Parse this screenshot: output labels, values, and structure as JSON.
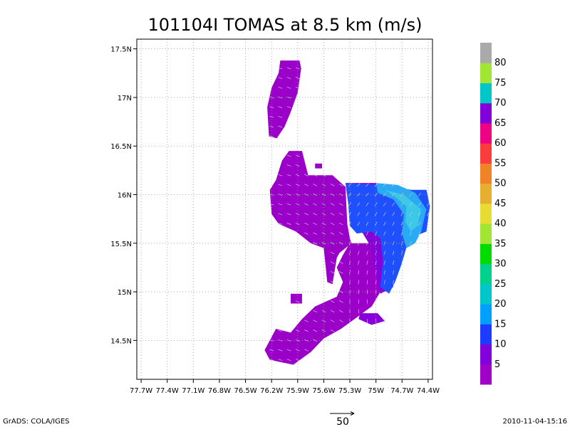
{
  "header": {
    "title": "101104I TOMAS at 8.5 km (m/s)"
  },
  "footer": {
    "left": "GrADS: COLA/IGES",
    "right": "2010-11-04-15:16",
    "scale_label": "50"
  },
  "chart_data": {
    "type": "heatmap",
    "title": "101104I TOMAS at 8.5 km (m/s)",
    "x_ticks": [
      "77.7W",
      "77.4W",
      "77.1W",
      "76.8W",
      "76.5W",
      "76.2W",
      "75.9W",
      "75.6W",
      "75.3W",
      "75W",
      "74.7W",
      "74.4W"
    ],
    "x_values": [
      -77.7,
      -77.4,
      -77.1,
      -76.8,
      -76.5,
      -76.2,
      -75.9,
      -75.6,
      -75.3,
      -75.0,
      -74.7,
      -74.4
    ],
    "y_ticks": [
      "14.5N",
      "15N",
      "15.5N",
      "16N",
      "16.5N",
      "17N",
      "17.5N"
    ],
    "y_values": [
      14.5,
      15.0,
      15.5,
      16.0,
      16.5,
      17.0,
      17.5
    ],
    "xlim": [
      -77.75,
      -74.35
    ],
    "ylim": [
      14.1,
      17.6
    ],
    "grid": true,
    "colorbar": {
      "labels": [
        "5",
        "10",
        "15",
        "20",
        "25",
        "30",
        "35",
        "40",
        "45",
        "50",
        "55",
        "60",
        "65",
        "70",
        "75",
        "80"
      ],
      "colors": [
        "#a000c8",
        "#8200dc",
        "#1e3cff",
        "#00a0ff",
        "#00c8c8",
        "#00d28c",
        "#00dc00",
        "#a0e632",
        "#e6dc32",
        "#e6af2d",
        "#f08228",
        "#fa3c3c",
        "#f00082",
        "#8200dc",
        "#00c8c8",
        "#a0e632",
        "#aaaaaa"
      ]
    },
    "regions": [
      {
        "name": "north-band-5",
        "speed_class": "5",
        "poly": [
          [
            -76.1,
            17.38
          ],
          [
            -75.88,
            17.38
          ],
          [
            -75.86,
            17.3
          ],
          [
            -75.9,
            17.05
          ],
          [
            -75.98,
            16.85
          ],
          [
            -76.05,
            16.7
          ],
          [
            -76.14,
            16.58
          ],
          [
            -76.23,
            16.6
          ],
          [
            -76.25,
            16.9
          ],
          [
            -76.2,
            17.1
          ],
          [
            -76.12,
            17.25
          ]
        ]
      },
      {
        "name": "west-core-5",
        "speed_class": "5",
        "poly": [
          [
            -76.0,
            16.45
          ],
          [
            -75.85,
            16.45
          ],
          [
            -75.78,
            16.2
          ],
          [
            -75.5,
            16.2
          ],
          [
            -75.35,
            16.08
          ],
          [
            -75.33,
            15.7
          ],
          [
            -75.3,
            15.55
          ],
          [
            -75.28,
            15.5
          ],
          [
            -75.42,
            15.4
          ],
          [
            -75.45,
            15.35
          ],
          [
            -75.5,
            15.08
          ],
          [
            -75.56,
            15.1
          ],
          [
            -75.6,
            15.45
          ],
          [
            -75.75,
            15.5
          ],
          [
            -75.92,
            15.62
          ],
          [
            -76.12,
            15.7
          ],
          [
            -76.2,
            15.8
          ],
          [
            -76.22,
            16.05
          ],
          [
            -76.15,
            16.15
          ],
          [
            -76.08,
            16.35
          ]
        ]
      },
      {
        "name": "south-band-5",
        "speed_class": "5",
        "poly": [
          [
            -75.3,
            15.5
          ],
          [
            -75.0,
            15.5
          ],
          [
            -74.95,
            15.0
          ],
          [
            -75.05,
            14.85
          ],
          [
            -75.2,
            14.75
          ],
          [
            -75.4,
            14.62
          ],
          [
            -75.6,
            14.52
          ],
          [
            -75.75,
            14.38
          ],
          [
            -75.95,
            14.25
          ],
          [
            -76.22,
            14.3
          ],
          [
            -76.28,
            14.4
          ],
          [
            -76.15,
            14.62
          ],
          [
            -75.98,
            14.58
          ],
          [
            -75.85,
            14.72
          ],
          [
            -75.7,
            14.85
          ],
          [
            -75.45,
            14.95
          ],
          [
            -75.38,
            15.1
          ],
          [
            -75.45,
            15.25
          ],
          [
            -75.38,
            15.38
          ]
        ]
      },
      {
        "name": "east-core-10",
        "speed_class": "10",
        "poly": [
          [
            -75.35,
            16.12
          ],
          [
            -75.0,
            16.12
          ],
          [
            -74.88,
            16.08
          ],
          [
            -74.75,
            15.95
          ],
          [
            -74.72,
            15.65
          ],
          [
            -74.82,
            15.45
          ],
          [
            -74.85,
            15.2
          ],
          [
            -74.8,
            15.05
          ],
          [
            -74.95,
            14.98
          ],
          [
            -75.02,
            15.2
          ],
          [
            -75.05,
            15.45
          ],
          [
            -75.15,
            15.6
          ],
          [
            -75.28,
            15.72
          ],
          [
            -75.32,
            15.92
          ]
        ]
      },
      {
        "name": "east-arc-15",
        "speed_class": "15",
        "poly": [
          [
            -75.35,
            16.12
          ],
          [
            -74.92,
            16.1
          ],
          [
            -74.6,
            16.05
          ],
          [
            -74.42,
            16.05
          ],
          [
            -74.38,
            15.88
          ],
          [
            -74.42,
            15.62
          ],
          [
            -74.62,
            15.55
          ],
          [
            -74.7,
            15.3
          ],
          [
            -74.78,
            15.1
          ],
          [
            -74.85,
            14.98
          ],
          [
            -74.95,
            15.05
          ],
          [
            -74.92,
            15.32
          ],
          [
            -74.95,
            15.55
          ],
          [
            -75.05,
            15.62
          ],
          [
            -75.22,
            15.6
          ],
          [
            -75.3,
            15.68
          ],
          [
            -75.32,
            15.92
          ]
        ]
      },
      {
        "name": "east-arc-20",
        "speed_class": "20",
        "poly": [
          [
            -75.0,
            16.12
          ],
          [
            -74.75,
            16.1
          ],
          [
            -74.55,
            16.02
          ],
          [
            -74.42,
            15.85
          ],
          [
            -74.48,
            15.62
          ],
          [
            -74.55,
            15.5
          ],
          [
            -74.65,
            15.45
          ],
          [
            -74.7,
            15.6
          ],
          [
            -74.68,
            15.8
          ],
          [
            -74.8,
            15.95
          ],
          [
            -74.98,
            16.02
          ]
        ]
      },
      {
        "name": "east-arc-25",
        "speed_class": "25",
        "poly": [
          [
            -74.9,
            16.05
          ],
          [
            -74.68,
            16.0
          ],
          [
            -74.48,
            15.85
          ],
          [
            -74.52,
            15.68
          ],
          [
            -74.6,
            15.62
          ],
          [
            -74.66,
            15.72
          ],
          [
            -74.65,
            15.88
          ],
          [
            -74.78,
            15.98
          ]
        ]
      },
      {
        "name": "south-tail-10",
        "speed_class": "10",
        "poly": [
          [
            -75.18,
            14.78
          ],
          [
            -74.98,
            14.78
          ],
          [
            -74.9,
            14.7
          ],
          [
            -75.05,
            14.66
          ],
          [
            -75.2,
            14.72
          ]
        ]
      },
      {
        "name": "island-5a",
        "speed_class": "5",
        "poly": [
          [
            -75.98,
            14.98
          ],
          [
            -75.85,
            14.98
          ],
          [
            -75.85,
            14.88
          ],
          [
            -75.98,
            14.88
          ]
        ]
      },
      {
        "name": "island-5b",
        "speed_class": "5",
        "poly": [
          [
            -75.7,
            16.32
          ],
          [
            -75.62,
            16.32
          ],
          [
            -75.62,
            16.27
          ],
          [
            -75.7,
            16.27
          ]
        ]
      }
    ]
  }
}
